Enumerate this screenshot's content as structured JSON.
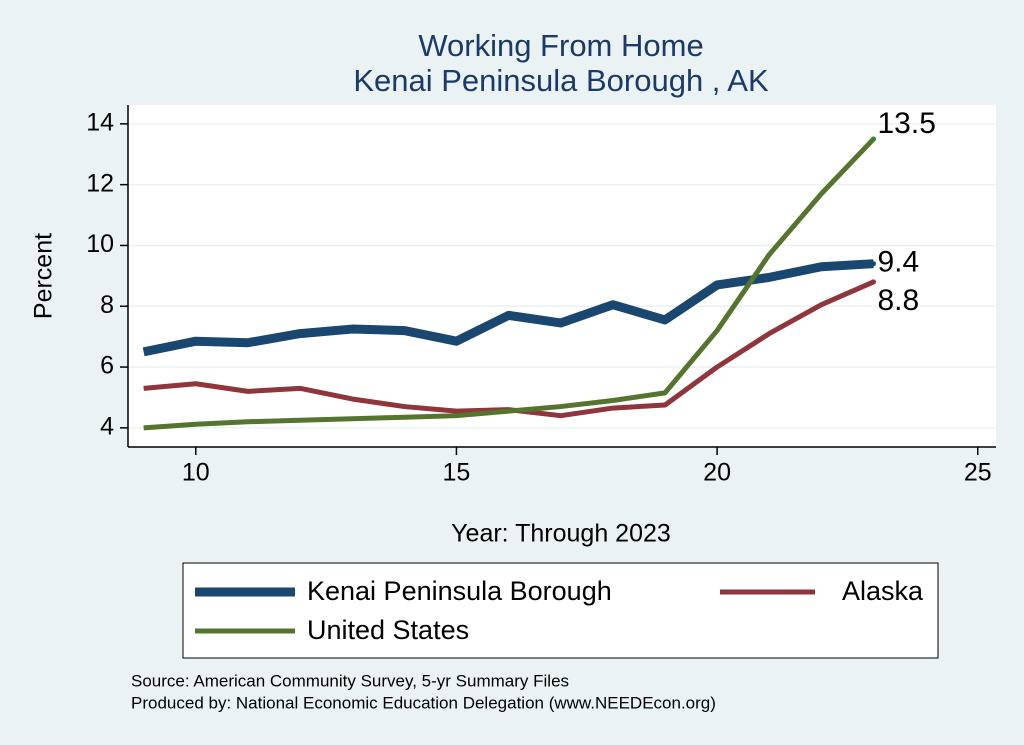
{
  "chart_data": {
    "type": "line",
    "title": "Working From Home",
    "subtitle": "Kenai Peninsula Borough , AK",
    "x_label": "Year: Through 2023",
    "y_label": "Percent",
    "x": [
      9,
      10,
      11,
      12,
      13,
      14,
      15,
      16,
      17,
      18,
      19,
      20,
      21,
      22,
      23
    ],
    "series": [
      {
        "name": "Kenai Peninsula Borough",
        "color": "#1a476f",
        "width": 9,
        "values": [
          6.5,
          6.85,
          6.8,
          7.1,
          7.25,
          7.2,
          6.85,
          7.7,
          7.45,
          8.05,
          7.55,
          8.7,
          8.95,
          9.3,
          9.4
        ]
      },
      {
        "name": "Alaska",
        "color": "#90353b",
        "width": 5,
        "values": [
          5.3,
          5.45,
          5.2,
          5.3,
          4.95,
          4.7,
          4.55,
          4.6,
          4.4,
          4.65,
          4.75,
          6.0,
          7.1,
          8.05,
          8.8
        ]
      },
      {
        "name": "United States",
        "color": "#55752f",
        "width": 5,
        "values": [
          4.0,
          4.12,
          4.2,
          4.25,
          4.3,
          4.35,
          4.4,
          4.55,
          4.7,
          4.9,
          5.15,
          7.2,
          9.7,
          11.7,
          13.5
        ]
      }
    ],
    "xlim": [
      8.7,
      25.35
    ],
    "xticks": [
      10,
      15,
      20,
      25
    ],
    "ylim": [
      3.37,
      14.62
    ],
    "yticks": [
      4,
      6,
      8,
      10,
      12,
      14
    ],
    "grid": true,
    "legend": "bottom",
    "source": "Source: American Community Survey, 5-yr Summary Files",
    "produced_by": "Produced by: National Economic Education Delegation (www.NEEDEcon.org)"
  }
}
